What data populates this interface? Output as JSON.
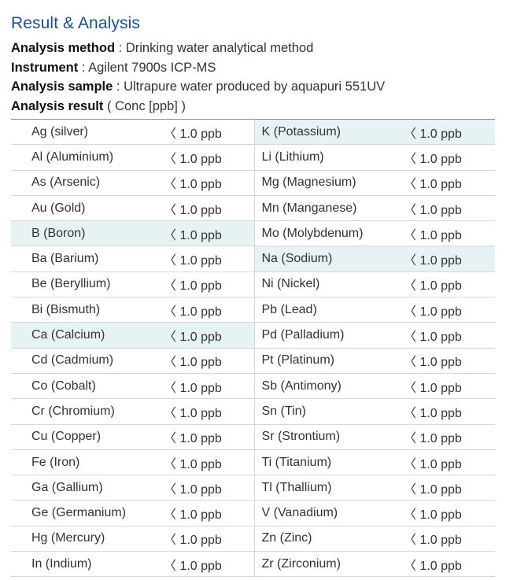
{
  "header": {
    "title": "Result & Analysis",
    "method_label": "Analysis method",
    "method_value": "Drinking water analytical method",
    "instrument_label": "Instrument",
    "instrument_value": "Agilent 7900s ICP-MS",
    "sample_label": "Analysis sample",
    "sample_value": "Ultrapure water produced by aquapuri 551UV",
    "result_label": "Analysis result",
    "result_value": "( Conc [ppb] )",
    "separator": " : "
  },
  "colors": {
    "title": "#1a4f96",
    "highlight": "#e6f2f4"
  },
  "rows": [
    {
      "l": "Ag (silver)",
      "lv": "〈 1.0 ppb",
      "r": "K (Potassium)",
      "rv": "〈 1.0 ppb",
      "lh": false,
      "rh": true
    },
    {
      "l": "Al (Aluminium)",
      "lv": "〈 1.0 ppb",
      "r": "Li (Lithium)",
      "rv": "〈 1.0 ppb",
      "lh": false,
      "rh": false
    },
    {
      "l": "As (Arsenic)",
      "lv": "〈 1.0 ppb",
      "r": "Mg (Magnesium)",
      "rv": "〈 1.0 ppb",
      "lh": false,
      "rh": false
    },
    {
      "l": "Au (Gold)",
      "lv": "〈 1.0 ppb",
      "r": "Mn (Manganese)",
      "rv": "〈 1.0 ppb",
      "lh": false,
      "rh": false
    },
    {
      "l": "B (Boron)",
      "lv": "〈 1.0 ppb",
      "r": "Mo (Molybdenum)",
      "rv": "〈 1.0 ppb",
      "lh": true,
      "rh": false
    },
    {
      "l": "Ba (Barium)",
      "lv": "〈 1.0 ppb",
      "r": "Na (Sodium)",
      "rv": "〈 1.0 ppb",
      "lh": false,
      "rh": true
    },
    {
      "l": "Be (Beryllium)",
      "lv": "〈 1.0 ppb",
      "r": "Ni (Nickel)",
      "rv": "〈 1.0 ppb",
      "lh": false,
      "rh": false
    },
    {
      "l": "Bi (Bismuth)",
      "lv": "〈 1.0 ppb",
      "r": "Pb (Lead)",
      "rv": "〈 1.0 ppb",
      "lh": false,
      "rh": false
    },
    {
      "l": "Ca (Calcium)",
      "lv": "〈 1.0 ppb",
      "r": "Pd (Palladium)",
      "rv": "〈 1.0 ppb",
      "lh": true,
      "rh": false
    },
    {
      "l": "Cd (Cadmium)",
      "lv": "〈 1.0 ppb",
      "r": "Pt (Platinum)",
      "rv": "〈 1.0 ppb",
      "lh": false,
      "rh": false
    },
    {
      "l": "Co (Cobalt)",
      "lv": "〈 1.0 ppb",
      "r": "Sb (Antimony)",
      "rv": "〈 1.0 ppb",
      "lh": false,
      "rh": false
    },
    {
      "l": "Cr (Chromium)",
      "lv": "〈 1.0 ppb",
      "r": "Sn (Tin)",
      "rv": "〈 1.0 ppb",
      "lh": false,
      "rh": false
    },
    {
      "l": "Cu (Copper)",
      "lv": "〈 1.0 ppb",
      "r": "Sr (Strontium)",
      "rv": "〈 1.0 ppb",
      "lh": false,
      "rh": false
    },
    {
      "l": "Fe (Iron)",
      "lv": "〈 1.0 ppb",
      "r": "Ti (Titanium)",
      "rv": "〈 1.0 ppb",
      "lh": false,
      "rh": false
    },
    {
      "l": "Ga (Gallium)",
      "lv": "〈 1.0 ppb",
      "r": "Tl (Thallium)",
      "rv": "〈 1.0 ppb",
      "lh": false,
      "rh": false
    },
    {
      "l": "Ge (Germanium)",
      "lv": "〈 1.0 ppb",
      "r": "V (Vanadium)",
      "rv": "〈 1.0 ppb",
      "lh": false,
      "rh": false
    },
    {
      "l": "Hg (Mercury)",
      "lv": "〈 1.0 ppb",
      "r": "Zn (Zinc)",
      "rv": "〈 1.0 ppb",
      "lh": false,
      "rh": false
    },
    {
      "l": "In (Indium)",
      "lv": "〈 1.0 ppb",
      "r": "Zr (Zirconium)",
      "rv": "〈 1.0 ppb",
      "lh": false,
      "rh": false
    }
  ]
}
